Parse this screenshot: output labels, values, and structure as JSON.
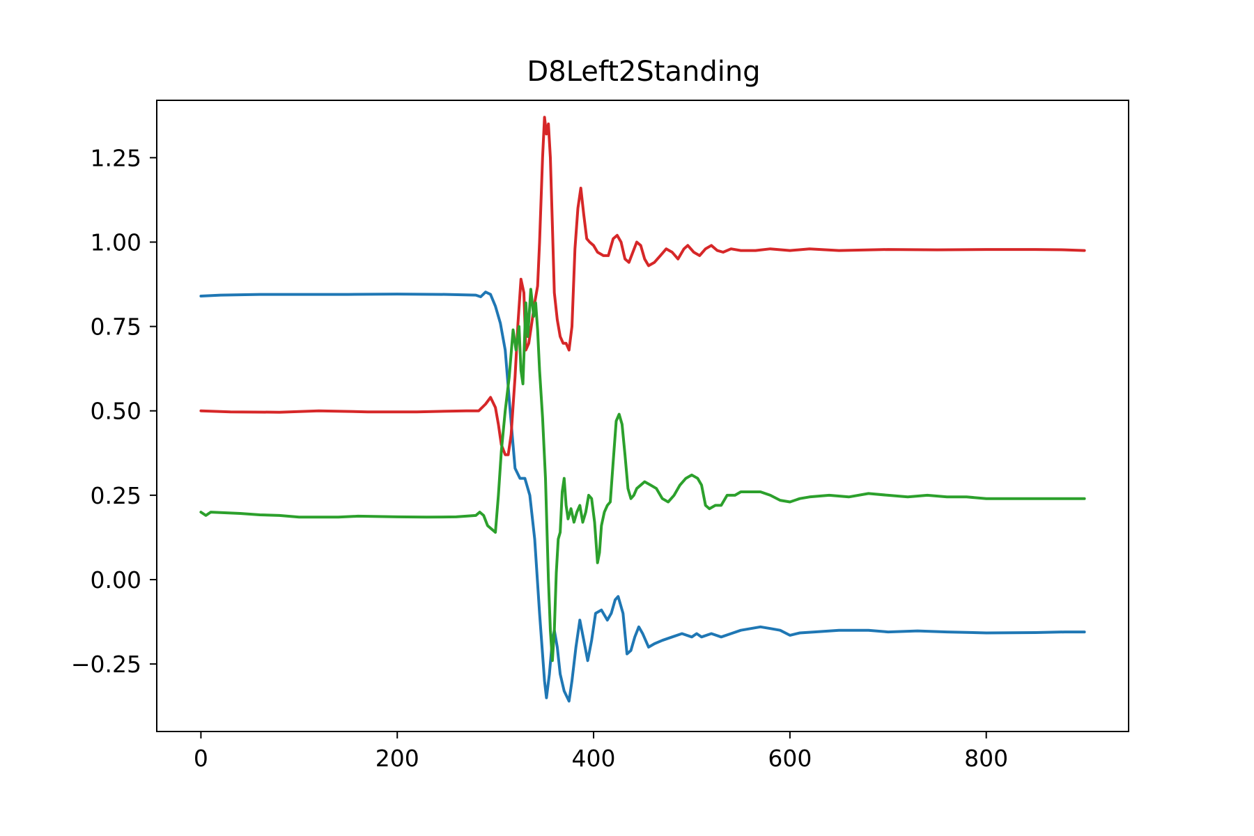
{
  "chart_data": {
    "type": "line",
    "title": "D8Left2Standing",
    "xlabel": "",
    "ylabel": "",
    "xlim": [
      -45,
      945
    ],
    "ylim": [
      -0.45,
      1.42
    ],
    "x_ticks": [
      0,
      200,
      400,
      600,
      800
    ],
    "x_tick_labels": [
      "0",
      "200",
      "400",
      "600",
      "800"
    ],
    "y_ticks": [
      -0.25,
      0.0,
      0.25,
      0.5,
      0.75,
      1.0,
      1.25
    ],
    "y_tick_labels": [
      "−0.25",
      "0.00",
      "0.25",
      "0.50",
      "0.75",
      "1.00",
      "1.25"
    ],
    "grid": false,
    "legend": "none",
    "series": [
      {
        "color": "#1f77b4",
        "points": [
          [
            0,
            0.84
          ],
          [
            20,
            0.843
          ],
          [
            60,
            0.845
          ],
          [
            100,
            0.845
          ],
          [
            150,
            0.845
          ],
          [
            200,
            0.846
          ],
          [
            250,
            0.845
          ],
          [
            280,
            0.843
          ],
          [
            285,
            0.838
          ],
          [
            290,
            0.852
          ],
          [
            295,
            0.845
          ],
          [
            300,
            0.81
          ],
          [
            305,
            0.76
          ],
          [
            310,
            0.68
          ],
          [
            315,
            0.5
          ],
          [
            320,
            0.33
          ],
          [
            325,
            0.3
          ],
          [
            330,
            0.3
          ],
          [
            335,
            0.25
          ],
          [
            340,
            0.12
          ],
          [
            345,
            -0.1
          ],
          [
            350,
            -0.3
          ],
          [
            352,
            -0.35
          ],
          [
            355,
            -0.28
          ],
          [
            358,
            -0.18
          ],
          [
            360,
            -0.15
          ],
          [
            363,
            -0.2
          ],
          [
            366,
            -0.28
          ],
          [
            370,
            -0.33
          ],
          [
            375,
            -0.36
          ],
          [
            378,
            -0.3
          ],
          [
            382,
            -0.2
          ],
          [
            386,
            -0.12
          ],
          [
            390,
            -0.18
          ],
          [
            394,
            -0.24
          ],
          [
            398,
            -0.18
          ],
          [
            402,
            -0.1
          ],
          [
            408,
            -0.09
          ],
          [
            414,
            -0.12
          ],
          [
            418,
            -0.1
          ],
          [
            422,
            -0.06
          ],
          [
            425,
            -0.05
          ],
          [
            430,
            -0.1
          ],
          [
            434,
            -0.22
          ],
          [
            438,
            -0.21
          ],
          [
            442,
            -0.17
          ],
          [
            446,
            -0.14
          ],
          [
            450,
            -0.16
          ],
          [
            456,
            -0.2
          ],
          [
            462,
            -0.19
          ],
          [
            470,
            -0.18
          ],
          [
            480,
            -0.17
          ],
          [
            490,
            -0.16
          ],
          [
            500,
            -0.17
          ],
          [
            505,
            -0.16
          ],
          [
            510,
            -0.17
          ],
          [
            520,
            -0.16
          ],
          [
            530,
            -0.17
          ],
          [
            540,
            -0.16
          ],
          [
            550,
            -0.15
          ],
          [
            570,
            -0.14
          ],
          [
            580,
            -0.145
          ],
          [
            590,
            -0.15
          ],
          [
            600,
            -0.165
          ],
          [
            610,
            -0.158
          ],
          [
            625,
            -0.155
          ],
          [
            650,
            -0.15
          ],
          [
            680,
            -0.15
          ],
          [
            700,
            -0.155
          ],
          [
            730,
            -0.152
          ],
          [
            760,
            -0.155
          ],
          [
            800,
            -0.158
          ],
          [
            850,
            -0.157
          ],
          [
            880,
            -0.155
          ],
          [
            900,
            -0.155
          ]
        ]
      },
      {
        "color": "#d62728",
        "points": [
          [
            0,
            0.5
          ],
          [
            30,
            0.497
          ],
          [
            80,
            0.496
          ],
          [
            120,
            0.5
          ],
          [
            170,
            0.497
          ],
          [
            220,
            0.497
          ],
          [
            270,
            0.5
          ],
          [
            283,
            0.5
          ],
          [
            290,
            0.52
          ],
          [
            295,
            0.54
          ],
          [
            300,
            0.51
          ],
          [
            303,
            0.46
          ],
          [
            306,
            0.4
          ],
          [
            310,
            0.37
          ],
          [
            313,
            0.37
          ],
          [
            316,
            0.43
          ],
          [
            320,
            0.6
          ],
          [
            323,
            0.76
          ],
          [
            326,
            0.89
          ],
          [
            329,
            0.85
          ],
          [
            331,
            0.68
          ],
          [
            334,
            0.7
          ],
          [
            337,
            0.76
          ],
          [
            340,
            0.82
          ],
          [
            343,
            0.87
          ],
          [
            345,
            1.0
          ],
          [
            348,
            1.25
          ],
          [
            350,
            1.37
          ],
          [
            352,
            1.32
          ],
          [
            354,
            1.35
          ],
          [
            356,
            1.25
          ],
          [
            358,
            1.05
          ],
          [
            360,
            0.85
          ],
          [
            363,
            0.77
          ],
          [
            366,
            0.72
          ],
          [
            369,
            0.7
          ],
          [
            372,
            0.7
          ],
          [
            375,
            0.68
          ],
          [
            378,
            0.75
          ],
          [
            381,
            0.98
          ],
          [
            384,
            1.1
          ],
          [
            387,
            1.16
          ],
          [
            390,
            1.08
          ],
          [
            393,
            1.01
          ],
          [
            396,
            1.0
          ],
          [
            400,
            0.99
          ],
          [
            404,
            0.97
          ],
          [
            410,
            0.96
          ],
          [
            415,
            0.96
          ],
          [
            420,
            1.01
          ],
          [
            424,
            1.02
          ],
          [
            428,
            1.0
          ],
          [
            432,
            0.95
          ],
          [
            436,
            0.94
          ],
          [
            440,
            0.97
          ],
          [
            444,
            1.0
          ],
          [
            448,
            0.99
          ],
          [
            452,
            0.95
          ],
          [
            456,
            0.93
          ],
          [
            462,
            0.94
          ],
          [
            468,
            0.96
          ],
          [
            474,
            0.98
          ],
          [
            480,
            0.97
          ],
          [
            486,
            0.95
          ],
          [
            492,
            0.98
          ],
          [
            496,
            0.99
          ],
          [
            502,
            0.97
          ],
          [
            508,
            0.96
          ],
          [
            514,
            0.98
          ],
          [
            520,
            0.99
          ],
          [
            526,
            0.975
          ],
          [
            532,
            0.97
          ],
          [
            540,
            0.98
          ],
          [
            550,
            0.975
          ],
          [
            565,
            0.975
          ],
          [
            580,
            0.98
          ],
          [
            600,
            0.975
          ],
          [
            620,
            0.98
          ],
          [
            650,
            0.975
          ],
          [
            700,
            0.978
          ],
          [
            750,
            0.977
          ],
          [
            800,
            0.978
          ],
          [
            850,
            0.978
          ],
          [
            880,
            0.977
          ],
          [
            900,
            0.975
          ]
        ]
      },
      {
        "color": "#2ca02c",
        "points": [
          [
            0,
            0.2
          ],
          [
            5,
            0.19
          ],
          [
            10,
            0.2
          ],
          [
            40,
            0.196
          ],
          [
            60,
            0.192
          ],
          [
            80,
            0.19
          ],
          [
            100,
            0.185
          ],
          [
            120,
            0.185
          ],
          [
            140,
            0.185
          ],
          [
            160,
            0.188
          ],
          [
            180,
            0.187
          ],
          [
            200,
            0.186
          ],
          [
            230,
            0.185
          ],
          [
            260,
            0.186
          ],
          [
            280,
            0.19
          ],
          [
            284,
            0.2
          ],
          [
            288,
            0.19
          ],
          [
            292,
            0.16
          ],
          [
            296,
            0.15
          ],
          [
            300,
            0.14
          ],
          [
            303,
            0.25
          ],
          [
            306,
            0.38
          ],
          [
            310,
            0.5
          ],
          [
            314,
            0.6
          ],
          [
            318,
            0.74
          ],
          [
            321,
            0.68
          ],
          [
            324,
            0.75
          ],
          [
            326,
            0.62
          ],
          [
            328,
            0.58
          ],
          [
            331,
            0.82
          ],
          [
            333,
            0.72
          ],
          [
            336,
            0.86
          ],
          [
            339,
            0.78
          ],
          [
            341,
            0.82
          ],
          [
            343,
            0.74
          ],
          [
            345,
            0.62
          ],
          [
            348,
            0.48
          ],
          [
            351,
            0.3
          ],
          [
            354,
            0.0
          ],
          [
            356,
            -0.15
          ],
          [
            358,
            -0.24
          ],
          [
            360,
            -0.15
          ],
          [
            362,
            0.02
          ],
          [
            364,
            0.12
          ],
          [
            366,
            0.14
          ],
          [
            368,
            0.26
          ],
          [
            370,
            0.3
          ],
          [
            372,
            0.22
          ],
          [
            374,
            0.18
          ],
          [
            377,
            0.21
          ],
          [
            380,
            0.17
          ],
          [
            383,
            0.2
          ],
          [
            386,
            0.22
          ],
          [
            389,
            0.17
          ],
          [
            392,
            0.2
          ],
          [
            395,
            0.25
          ],
          [
            398,
            0.24
          ],
          [
            401,
            0.17
          ],
          [
            404,
            0.05
          ],
          [
            406,
            0.08
          ],
          [
            408,
            0.16
          ],
          [
            411,
            0.2
          ],
          [
            414,
            0.22
          ],
          [
            417,
            0.23
          ],
          [
            420,
            0.35
          ],
          [
            423,
            0.47
          ],
          [
            426,
            0.49
          ],
          [
            429,
            0.46
          ],
          [
            432,
            0.37
          ],
          [
            435,
            0.27
          ],
          [
            438,
            0.24
          ],
          [
            441,
            0.25
          ],
          [
            444,
            0.27
          ],
          [
            448,
            0.28
          ],
          [
            452,
            0.29
          ],
          [
            458,
            0.28
          ],
          [
            464,
            0.27
          ],
          [
            470,
            0.24
          ],
          [
            476,
            0.23
          ],
          [
            482,
            0.25
          ],
          [
            488,
            0.28
          ],
          [
            494,
            0.3
          ],
          [
            500,
            0.31
          ],
          [
            506,
            0.3
          ],
          [
            510,
            0.28
          ],
          [
            514,
            0.22
          ],
          [
            518,
            0.21
          ],
          [
            524,
            0.22
          ],
          [
            530,
            0.22
          ],
          [
            536,
            0.25
          ],
          [
            544,
            0.25
          ],
          [
            550,
            0.26
          ],
          [
            560,
            0.26
          ],
          [
            570,
            0.26
          ],
          [
            580,
            0.25
          ],
          [
            590,
            0.235
          ],
          [
            600,
            0.23
          ],
          [
            610,
            0.24
          ],
          [
            620,
            0.245
          ],
          [
            640,
            0.25
          ],
          [
            660,
            0.245
          ],
          [
            680,
            0.255
          ],
          [
            700,
            0.25
          ],
          [
            720,
            0.245
          ],
          [
            740,
            0.25
          ],
          [
            760,
            0.245
          ],
          [
            780,
            0.245
          ],
          [
            800,
            0.24
          ],
          [
            820,
            0.24
          ],
          [
            840,
            0.24
          ],
          [
            860,
            0.24
          ],
          [
            880,
            0.24
          ],
          [
            900,
            0.24
          ]
        ]
      }
    ]
  }
}
